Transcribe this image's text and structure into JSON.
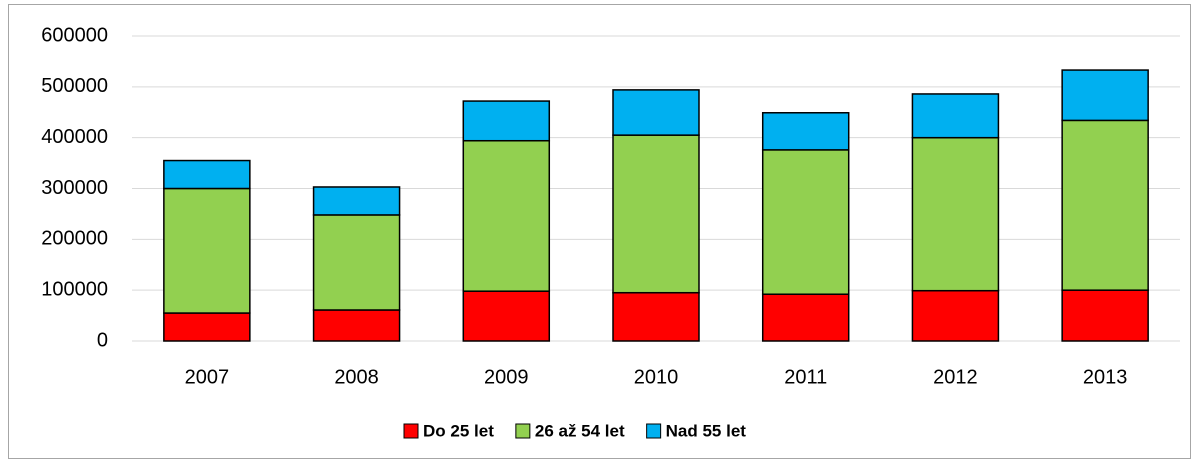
{
  "chart_data": {
    "type": "stacked_bar",
    "categories": [
      "2007",
      "2008",
      "2009",
      "2010",
      "2011",
      "2012",
      "2013"
    ],
    "series": [
      {
        "name": "Do 25 let",
        "color": "#ff0000",
        "values": [
          55000,
          61000,
          98000,
          95000,
          92000,
          99000,
          100000
        ]
      },
      {
        "name": "26 až 54 let",
        "color": "#92d050",
        "values": [
          245000,
          187000,
          296000,
          310000,
          284000,
          301000,
          334000
        ]
      },
      {
        "name": "Nad 55 let",
        "color": "#00b0f0",
        "values": [
          55000,
          55000,
          78000,
          89000,
          73000,
          86000,
          99000
        ]
      }
    ],
    "ylim": [
      0,
      600000
    ],
    "yticks": [
      0,
      100000,
      200000,
      300000,
      400000,
      500000,
      600000
    ],
    "grid": true,
    "legend": "bottom"
  }
}
